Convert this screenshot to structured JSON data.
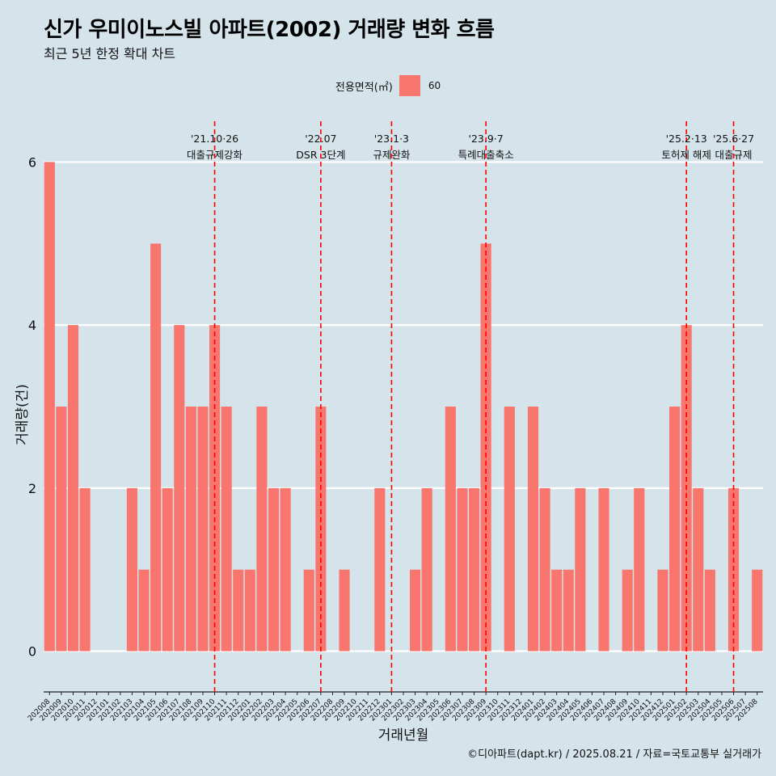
{
  "header": {
    "title": "신가 우미이노스빌 아파트(2002) 거래량 변화 흐름",
    "subtitle": "최근 5년 한정 확대 차트"
  },
  "legend": {
    "title": "전용면적(㎡)",
    "items": [
      {
        "label": "60",
        "color": "#f8766d"
      }
    ]
  },
  "footer": "©디아파트(dapt.kr) / 2025.08.21 / 자료=국토교통부 실거래가",
  "chart_data": {
    "type": "bar",
    "xlabel": "거래년월",
    "ylabel": "거래량(건)",
    "ylim": [
      -0.5,
      6.5
    ],
    "yticks": [
      0,
      2,
      4,
      6
    ],
    "bar_color": "#f8766d",
    "background": "#d5e3ea",
    "grid": "horizontal white lines",
    "categories": [
      "202008",
      "202009",
      "202010",
      "202011",
      "202012",
      "202101",
      "202102",
      "202103",
      "202104",
      "202105",
      "202106",
      "202107",
      "202108",
      "202109",
      "202110",
      "202111",
      "202112",
      "202201",
      "202202",
      "202203",
      "202204",
      "202205",
      "202206",
      "202207",
      "202208",
      "202209",
      "202210",
      "202211",
      "202212",
      "202301",
      "202302",
      "202303",
      "202304",
      "202305",
      "202306",
      "202307",
      "202308",
      "202309",
      "202310",
      "202311",
      "202312",
      "202401",
      "202402",
      "202403",
      "202404",
      "202405",
      "202406",
      "202407",
      "202408",
      "202409",
      "202410",
      "202411",
      "202412",
      "202501",
      "202502",
      "202503",
      "202504",
      "202505",
      "202506",
      "202507",
      "202508"
    ],
    "series": [
      {
        "name": "60",
        "values": [
          6,
          3,
          4,
          2,
          0,
          0,
          0,
          2,
          1,
          5,
          2,
          4,
          3,
          3,
          4,
          3,
          1,
          1,
          3,
          2,
          2,
          0,
          1,
          3,
          0,
          1,
          0,
          0,
          2,
          0,
          0,
          1,
          2,
          0,
          3,
          2,
          2,
          5,
          0,
          3,
          0,
          3,
          2,
          1,
          1,
          2,
          0,
          2,
          0,
          1,
          2,
          0,
          1,
          3,
          4,
          2,
          1,
          0,
          2,
          0,
          1
        ]
      }
    ],
    "annotations": [
      {
        "category": "202110",
        "line1": "'21.10·26",
        "line2": "대출규제강화",
        "color": "#ff0000"
      },
      {
        "category": "202207",
        "line1": "'22.07",
        "line2": "DSR 3단계",
        "color": "#ff0000"
      },
      {
        "category": "202301",
        "line1": "'23.1·3",
        "line2": "규제완화",
        "color": "#ff0000"
      },
      {
        "category": "202309",
        "line1": "'23.9·7",
        "line2": "특례대출축소",
        "color": "#ff0000"
      },
      {
        "category": "202502",
        "line1": "'25.2·13",
        "line2": "토허제 해제",
        "color": "#ff0000"
      },
      {
        "category": "202506",
        "line1": "'25.6·27",
        "line2": "대출규제",
        "color": "#ff0000"
      }
    ]
  }
}
